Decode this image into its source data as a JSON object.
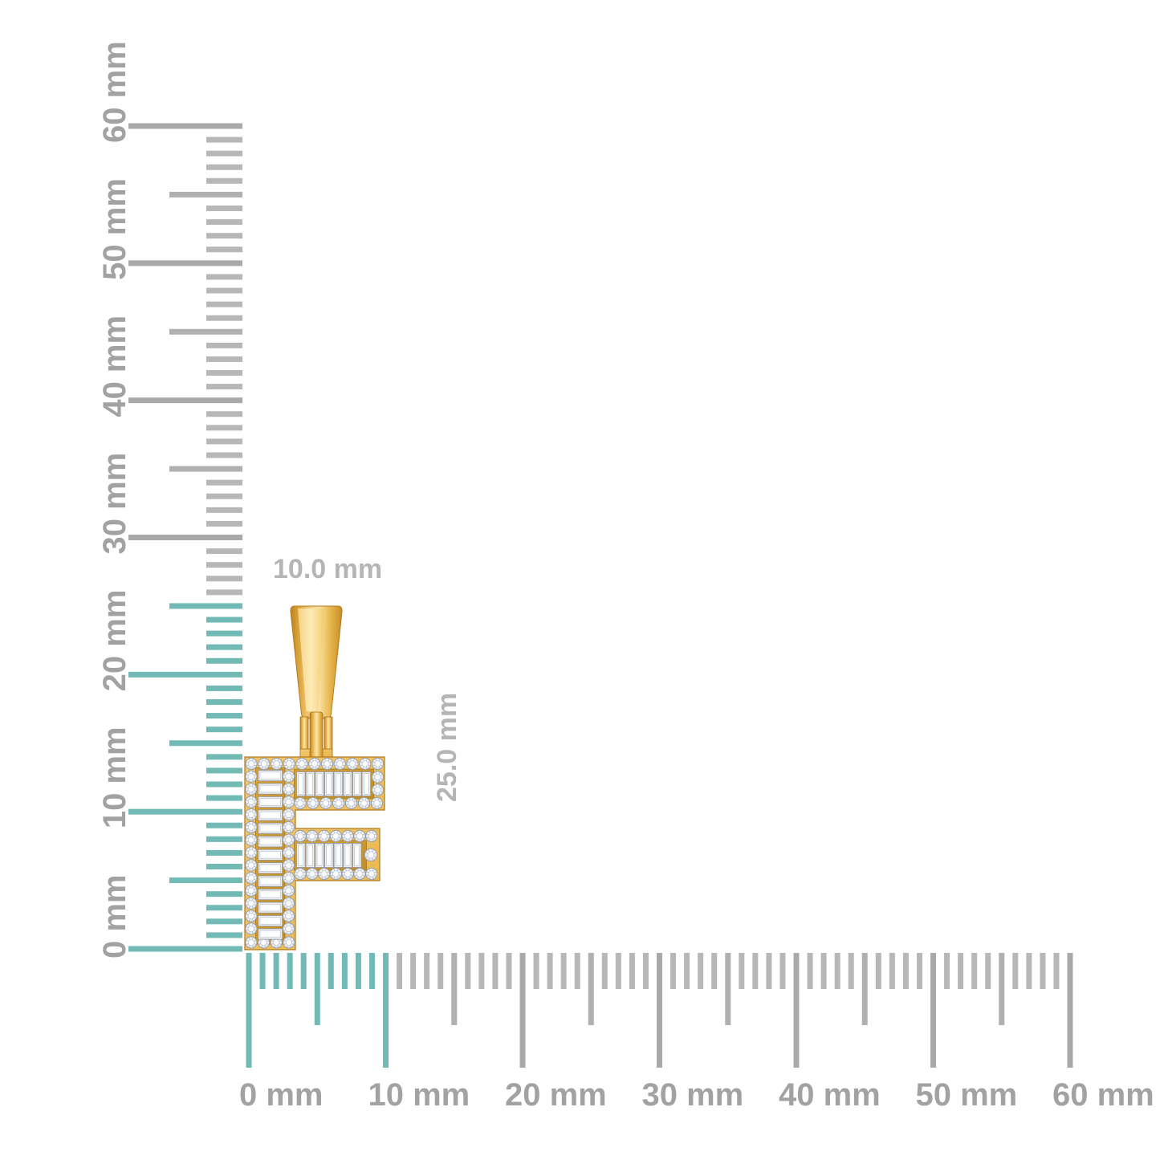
{
  "pendant": {
    "letter": "F",
    "width_label": "10.0 mm",
    "height_label": "25.0 mm"
  },
  "rulers": {
    "unit": "mm",
    "vertical": {
      "min_mm": 0,
      "max_mm": 60,
      "tick_step_mm": 1,
      "half_tick_every_mm": 5,
      "major_tick_every_mm": 10,
      "labels": [
        "0 mm",
        "10 mm",
        "20 mm",
        "30 mm",
        "40 mm",
        "50 mm",
        "60 mm"
      ],
      "highlight_range_mm": [
        0,
        25
      ]
    },
    "horizontal": {
      "min_mm": 0,
      "max_mm": 60,
      "tick_step_mm": 1,
      "half_tick_every_mm": 5,
      "major_tick_every_mm": 10,
      "labels": [
        "0 mm",
        "10 mm",
        "20 mm",
        "30 mm",
        "40 mm",
        "50 mm",
        "60 mm"
      ],
      "highlight_range_mm": [
        0,
        10
      ]
    }
  },
  "colors": {
    "background": "#ffffff",
    "highlight_tick": "#72bab6",
    "minor_tick_gray": "#b7b7b7",
    "half_tick_gray": "#b0b0b0",
    "major_tick_gray": "#a9a9a9",
    "ruler_label_gray": "#a2a2a2",
    "dimension_label_gray": "#b5b5b5",
    "gold_light": "#fae3a6",
    "gold_mid": "#eec05f",
    "gold_dark": "#c0841f",
    "diamond_fill": "#edf0f4",
    "diamond_edge": "#9098a3"
  }
}
